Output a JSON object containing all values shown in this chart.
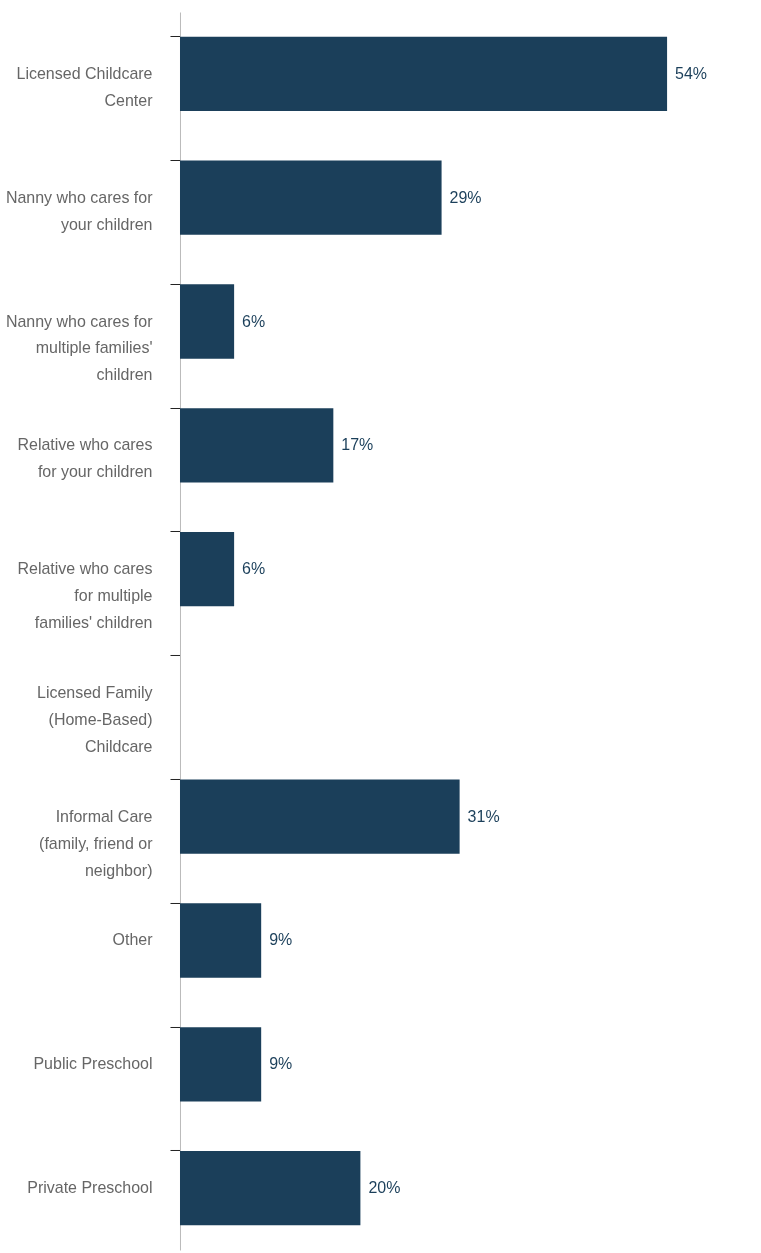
{
  "chart_data": {
    "type": "bar",
    "orientation": "horizontal",
    "categories": [
      "Licensed Childcare Center",
      "Nanny who cares for your children",
      "Nanny who cares for multiple families' children",
      "Relative who cares for your children",
      "Relative who cares for multiple families' children",
      "Licensed Family (Home-Based) Childcare",
      "Informal Care (family, friend or neighbor)",
      "Other",
      "Public Preschool",
      "Private Preschool"
    ],
    "values": [
      54,
      29,
      6,
      17,
      6,
      null,
      31,
      9,
      9,
      20
    ],
    "value_labels": [
      "54%",
      "29%",
      "6%",
      "17%",
      "6%",
      null,
      "31%",
      "9%",
      "9%",
      "20%"
    ],
    "color": "#1b3f5a",
    "grid": false
  }
}
